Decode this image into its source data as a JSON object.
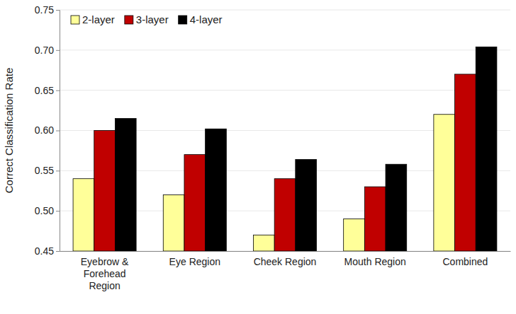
{
  "chart_data": {
    "type": "bar",
    "y_label": "Correct Classification Rate",
    "categories": [
      "Eyebrow & Forehead Region",
      "Eye Region",
      "Cheek Region",
      "Mouth Region",
      "Combined"
    ],
    "series": [
      {
        "name": "2-layer",
        "color": "#ffff99",
        "values": [
          0.54,
          0.52,
          0.47,
          0.49,
          0.62
        ]
      },
      {
        "name": "3-layer",
        "color": "#c00000",
        "values": [
          0.6,
          0.57,
          0.54,
          0.53,
          0.67
        ]
      },
      {
        "name": "4-layer",
        "color": "#000000",
        "values": [
          0.615,
          0.602,
          0.564,
          0.558,
          0.704
        ]
      }
    ],
    "ylim": [
      0.45,
      0.75
    ],
    "yticks": [
      0.45,
      {
        "value": 0.5,
        "label": "0.50"
      },
      0.55,
      {
        "value": 0.6,
        "label": "0.60"
      },
      0.65,
      {
        "value": 0.7,
        "label": "0.70"
      },
      0.75
    ],
    "grid": true,
    "legend": "upper left"
  }
}
